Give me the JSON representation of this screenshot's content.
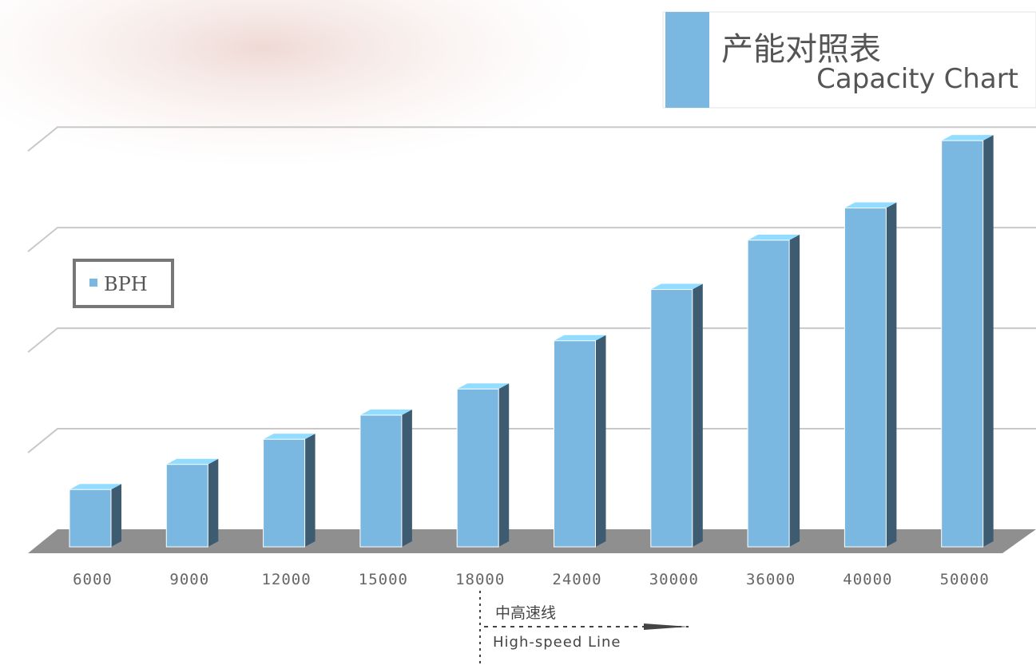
{
  "chart_data": {
    "type": "bar",
    "title": "产能对照表",
    "subtitle": "Capacity Chart",
    "categories": [
      "6000",
      "9000",
      "12000",
      "15000",
      "18000",
      "24000",
      "30000",
      "36000",
      "40000",
      "50000"
    ],
    "series": [
      {
        "name": "BPH",
        "color": "#7ab8e1",
        "values": [
          5700,
          8200,
          10700,
          13100,
          15700,
          20500,
          25600,
          30500,
          33700,
          40400
        ]
      }
    ],
    "ylim": [
      0,
      42000
    ],
    "yticks": [
      0,
      10000,
      20000,
      30000,
      40000
    ],
    "grid": true,
    "legend": "left",
    "annotations": [
      "中高速线",
      "High-speed Line"
    ]
  }
}
